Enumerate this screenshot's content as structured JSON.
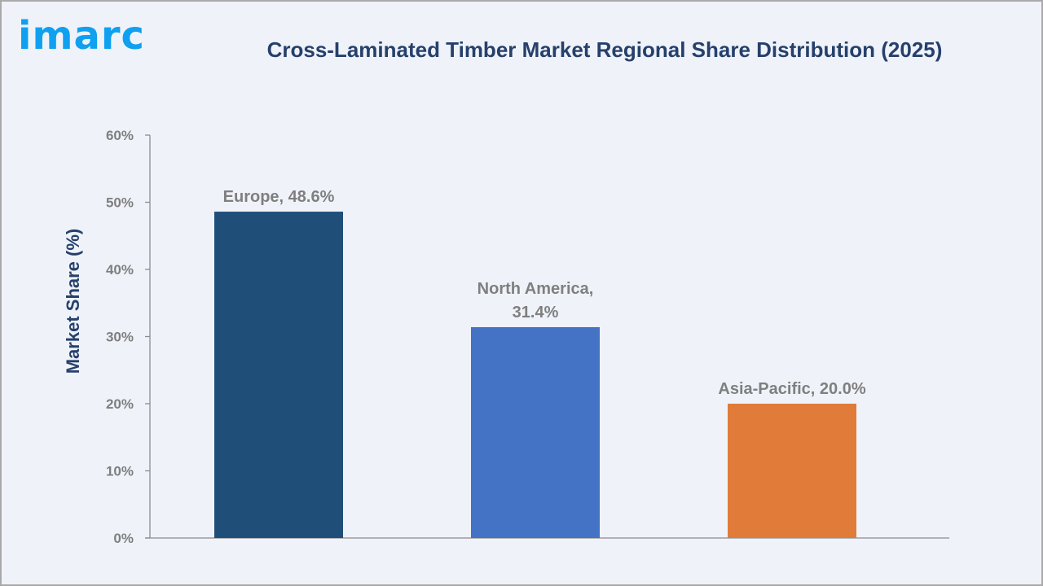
{
  "logo_text": "imarc",
  "chart_data": {
    "type": "bar",
    "title": "Cross-Laminated Timber Market Regional Share Distribution (2025)",
    "xlabel": "",
    "ylabel": "Market Share (%)",
    "ylim": [
      0,
      60
    ],
    "yticks": [
      0,
      10,
      20,
      30,
      40,
      50,
      60
    ],
    "ytick_labels": [
      "0%",
      "10%",
      "20%",
      "30%",
      "40%",
      "50%",
      "60%"
    ],
    "categories": [
      "Europe",
      "North America",
      "Asia-Pacific"
    ],
    "values": [
      48.6,
      31.4,
      20.0
    ],
    "data_labels": [
      [
        "Europe, 48.6%"
      ],
      [
        "North America,",
        "31.4%"
      ],
      [
        "Asia-Pacific, 20.0%"
      ]
    ],
    "colors": [
      "#1f4e79",
      "#4472c4",
      "#e07b39"
    ],
    "grid": false,
    "legend": "none"
  }
}
